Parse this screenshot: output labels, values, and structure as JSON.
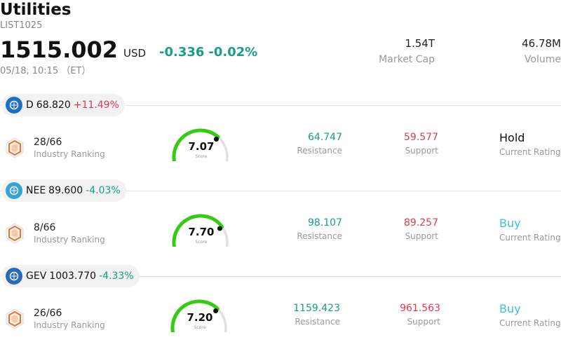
{
  "header": {
    "title": "Utilities",
    "code": "LIST1025",
    "price": "1515.002",
    "currency": "USD",
    "change": "-0.336",
    "change_pct": "-0.02%",
    "timestamp": "05/18, 10:15 （ET）",
    "market_cap_value": "1.54T",
    "market_cap_label": "Market Cap",
    "volume_value": "46.78M",
    "volume_label": "Volume"
  },
  "stocks": [
    {
      "symbol": "D",
      "price": "68.820",
      "change_pct": "+11.49%",
      "direction": "up",
      "logo": "dominion-logo-icon",
      "logo_color": "#1f6fc5",
      "rank": "28/66",
      "rank_label": "Industry Ranking",
      "score": "7.07",
      "score_fraction": 0.707,
      "score_label": "Score",
      "resistance": "64.747",
      "resistance_label": "Resistance",
      "support": "59.577",
      "support_label": "Support",
      "rating": "Hold",
      "rating_label": "Current Rating"
    },
    {
      "symbol": "NEE",
      "price": "89.600",
      "change_pct": "-4.03%",
      "direction": "down",
      "logo": "nextera-logo-icon",
      "logo_color": "#3aa0d8",
      "rank": "8/66",
      "rank_label": "Industry Ranking",
      "score": "7.70",
      "score_fraction": 0.77,
      "score_label": "Score",
      "resistance": "98.107",
      "resistance_label": "Resistance",
      "support": "89.257",
      "support_label": "Support",
      "rating": "Buy",
      "rating_label": "Current Rating"
    },
    {
      "symbol": "GEV",
      "price": "1003.770",
      "change_pct": "-4.33%",
      "direction": "down",
      "logo": "ge-vernova-logo-icon",
      "logo_color": "#2a6bb8",
      "rank": "26/66",
      "rank_label": "Industry Ranking",
      "score": "7.20",
      "score_fraction": 0.72,
      "score_label": "Score",
      "resistance": "1159.423",
      "resistance_label": "Resistance",
      "support": "961.563",
      "support_label": "Support",
      "rating": "Buy",
      "rating_label": "Current Rating"
    }
  ],
  "colors": {
    "up": "#e53950",
    "down": "#16a085",
    "buy": "#39c3d4",
    "gauge_fill": "#33cc11",
    "gauge_track": "#e0e0e6"
  }
}
